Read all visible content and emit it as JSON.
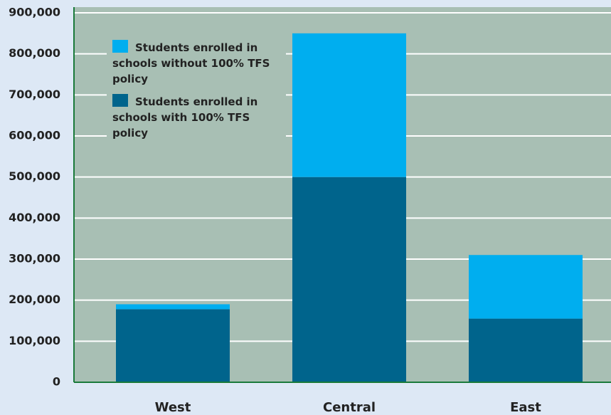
{
  "chart_data": {
    "type": "stacked_bar",
    "categories": [
      "West",
      "Central",
      "East"
    ],
    "series": [
      {
        "name": "Students enrolled in schools with 100% TFS policy",
        "color": "#00648c",
        "values": [
          178000,
          500000,
          155000
        ]
      },
      {
        "name": "Students enrolled in schools without 100% TFS policy",
        "color": "#00aeef",
        "values": [
          12000,
          350000,
          155000
        ]
      }
    ],
    "ylim": [
      0,
      900000
    ],
    "yticks": [
      {
        "value": 0,
        "label": "0"
      },
      {
        "value": 100000,
        "label": "100,000"
      },
      {
        "value": 200000,
        "label": "200,000"
      },
      {
        "value": 300000,
        "label": "300,000"
      },
      {
        "value": 400000,
        "label": "400,000"
      },
      {
        "value": 500000,
        "label": "500,000"
      },
      {
        "value": 600000,
        "label": "600,000"
      },
      {
        "value": 700000,
        "label": "700,000"
      },
      {
        "value": 800000,
        "label": "800,000"
      },
      {
        "value": 900000,
        "label": "900,000"
      }
    ],
    "grid": true
  }
}
